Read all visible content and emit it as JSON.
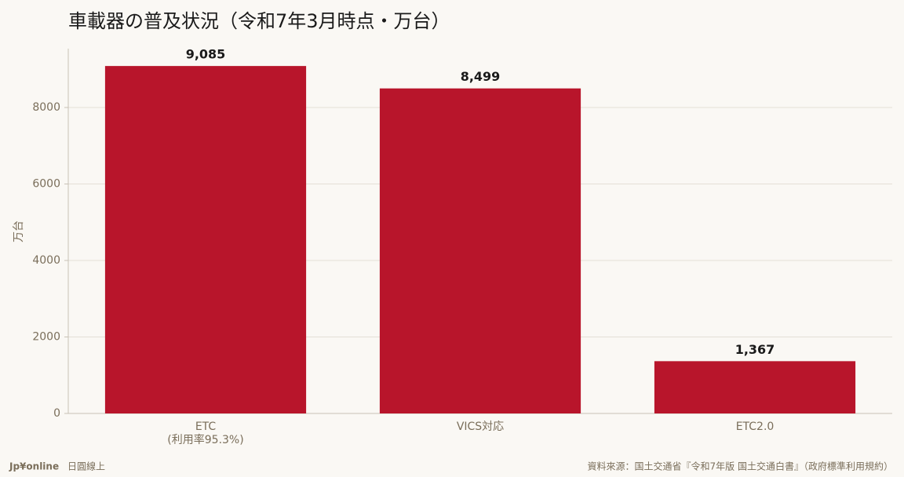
{
  "chart_data": {
    "type": "bar",
    "title": "車載器の普及状況（令和7年3月時点・万台）",
    "categories": [
      "ETC\n(利用率95.3%)",
      "VICS対応",
      "ETC2.0"
    ],
    "values": [
      9085,
      8499,
      1367
    ],
    "value_labels": [
      "9,085",
      "8,499",
      "1,367"
    ],
    "color": "#b8152b",
    "ylabel": "万台",
    "ylim": [
      0,
      9539
    ],
    "yticks": [
      0,
      2000,
      4000,
      6000,
      8000
    ],
    "grid": true,
    "brand": "Jp¥online",
    "brand_sub": "日圓線上",
    "source": "資料來源：国土交通省『令和7年版 国土交通白書』（政府標準利用規約）"
  }
}
